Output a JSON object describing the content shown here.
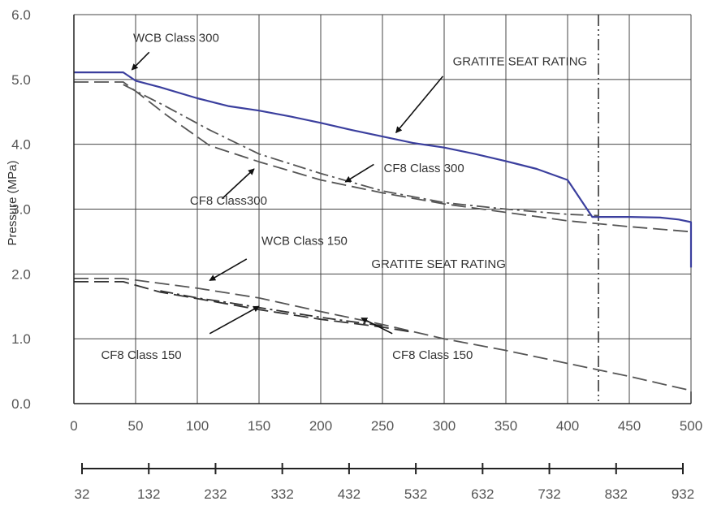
{
  "chart_data": {
    "type": "line",
    "title": "",
    "xlabel": "",
    "ylabel": "Pressure (MPa)",
    "xlim": [
      0,
      500
    ],
    "ylim": [
      0,
      6
    ],
    "grid": true,
    "x_ticks": [
      "0",
      "50",
      "100",
      "150",
      "200",
      "250",
      "300",
      "350",
      "400",
      "450",
      "500"
    ],
    "y_ticks": [
      "0.0",
      "1.0",
      "2.0",
      "3.0",
      "4.0",
      "5.0",
      "6.0"
    ],
    "secondary_x_ticks": [
      "32",
      "132",
      "232",
      "332",
      "432",
      "532",
      "632",
      "732",
      "832",
      "932"
    ],
    "vertical_reference_x": 425,
    "series": [
      {
        "name": "GRATITE SEAT RATING",
        "style": "solid",
        "color": "#3b3f9e",
        "x": [
          0,
          40,
          50,
          70,
          100,
          125,
          150,
          175,
          200,
          225,
          250,
          275,
          300,
          325,
          350,
          375,
          400,
          420,
          425,
          450,
          475,
          490,
          500,
          500
        ],
        "y": [
          5.11,
          5.11,
          4.98,
          4.88,
          4.71,
          4.59,
          4.52,
          4.43,
          4.33,
          4.22,
          4.12,
          4.02,
          3.95,
          3.85,
          3.74,
          3.62,
          3.45,
          2.88,
          2.88,
          2.88,
          2.87,
          2.84,
          2.8,
          2.1
        ]
      },
      {
        "name": "CF8 Class 300",
        "style": "long-dash",
        "color": "#555555",
        "x": [
          0,
          40,
          50,
          75,
          110,
          150,
          200,
          250,
          300,
          350,
          400,
          450,
          500
        ],
        "y": [
          4.96,
          4.96,
          4.82,
          4.45,
          3.98,
          3.73,
          3.45,
          3.25,
          3.08,
          2.95,
          2.82,
          2.73,
          2.65
        ]
      },
      {
        "name": "CF8 Class 300",
        "style": "dash-dot",
        "color": "#555555",
        "x": [
          40,
          75,
          110,
          150,
          200,
          250,
          300,
          350,
          400,
          425
        ],
        "y": [
          4.92,
          4.58,
          4.22,
          3.85,
          3.55,
          3.28,
          3.1,
          3.0,
          2.92,
          2.9
        ]
      },
      {
        "name": "WCB Class 150",
        "style": "long-dash",
        "color": "#555555",
        "x": [
          0,
          40,
          100,
          150,
          200,
          250,
          300,
          350,
          400,
          450,
          500,
          500
        ],
        "y": [
          1.93,
          1.93,
          1.78,
          1.63,
          1.42,
          1.22,
          1.0,
          0.82,
          0.62,
          0.42,
          0.2,
          0.0
        ]
      },
      {
        "name": "CF8 Class 150",
        "style": "long-dash",
        "color": "#333333",
        "x": [
          0,
          40,
          70,
          100,
          150,
          200,
          250,
          275
        ],
        "y": [
          1.88,
          1.88,
          1.72,
          1.62,
          1.45,
          1.3,
          1.18,
          1.1
        ]
      },
      {
        "name": "CF8 Class 150",
        "style": "dash-dot",
        "color": "#333333",
        "x": [
          70,
          100,
          125,
          150,
          200,
          250
        ],
        "y": [
          1.74,
          1.63,
          1.56,
          1.48,
          1.33,
          1.2
        ]
      }
    ],
    "annotations": [
      {
        "text": "WCB Class 300",
        "x": 48,
        "y": 5.58
      },
      {
        "text": "GRATITE SEAT RATING",
        "x": 307,
        "y": 5.22
      },
      {
        "text": "CF8 Class 300",
        "x": 251,
        "y": 3.57
      },
      {
        "text": "CF8 Class300",
        "x": 94,
        "y": 3.07
      },
      {
        "text": "WCB Class 150",
        "x": 152,
        "y": 2.45
      },
      {
        "text": "GRATITE SEAT RATING",
        "x": 241,
        "y": 2.09
      },
      {
        "text": "CF8 Class 150",
        "x": 22,
        "y": 0.69
      },
      {
        "text": "CF8 Class 150",
        "x": 258,
        "y": 0.69
      }
    ],
    "arrows": [
      {
        "from": [
          61,
          5.42
        ],
        "to": [
          47,
          5.15
        ]
      },
      {
        "from": [
          299,
          5.05
        ],
        "to": [
          261,
          4.18
        ]
      },
      {
        "from": [
          243,
          3.69
        ],
        "to": [
          220,
          3.42
        ]
      },
      {
        "from": [
          120,
          3.16
        ],
        "to": [
          146,
          3.62
        ]
      },
      {
        "from": [
          140,
          2.23
        ],
        "to": [
          110,
          1.9
        ]
      },
      {
        "from": [
          110,
          1.08
        ],
        "to": [
          150,
          1.5
        ]
      },
      {
        "from": [
          258,
          1.08
        ],
        "to": [
          233,
          1.32
        ]
      }
    ]
  }
}
